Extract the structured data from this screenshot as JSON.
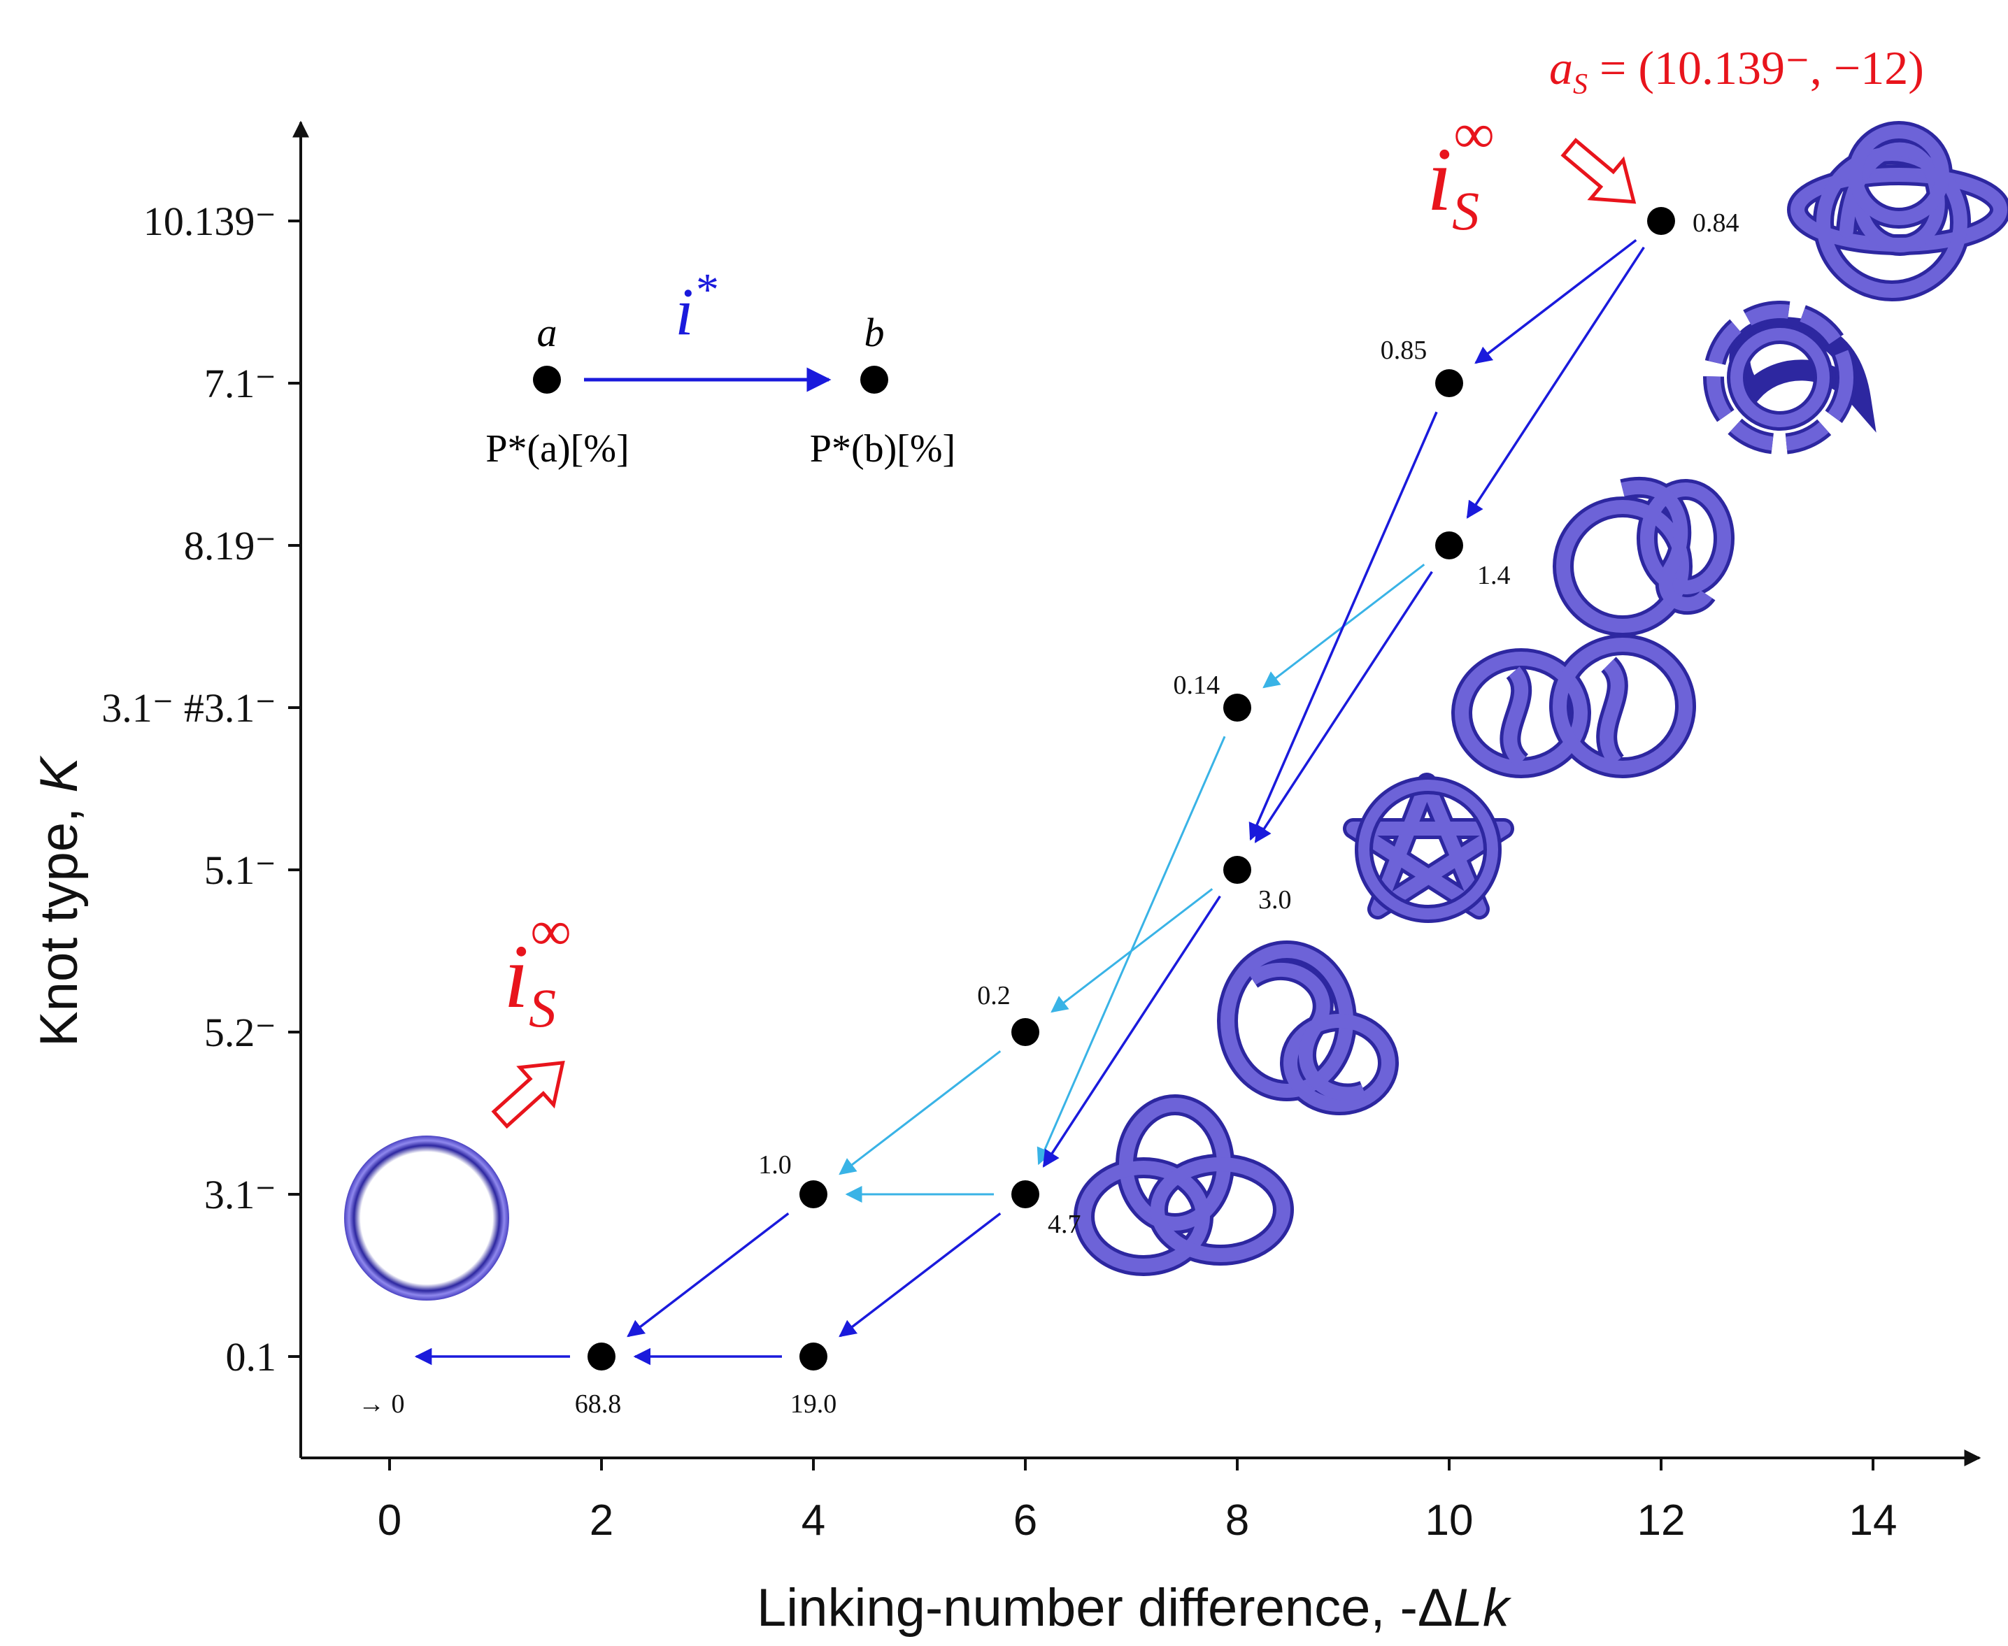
{
  "chart_data": {
    "type": "scatter",
    "xlabel_main": "Linking-number difference, -Δ",
    "xlabel_italic": "Lk",
    "ylabel_main": "Knot type, ",
    "ylabel_italic": "K",
    "x_ticks": [
      "0",
      "2",
      "4",
      "6",
      "8",
      "10",
      "12",
      "14"
    ],
    "xlim": [
      -0.9,
      14.9
    ],
    "y_categories": [
      "0.1",
      "3.1⁻",
      "5.2⁻",
      "5.1⁻",
      "3.1⁻ #3.1⁻",
      "8.19⁻",
      "7.1⁻",
      "10.139⁻"
    ],
    "points": [
      {
        "x": 2,
        "k": 0,
        "p": "68.8"
      },
      {
        "x": 4,
        "k": 0,
        "p": "19.0"
      },
      {
        "x": 4,
        "k": 1,
        "p": "1.0"
      },
      {
        "x": 6,
        "k": 1,
        "p": "4.7"
      },
      {
        "x": 6,
        "k": 2,
        "p": "0.2"
      },
      {
        "x": 8,
        "k": 3,
        "p": "3.0"
      },
      {
        "x": 8,
        "k": 4,
        "p": "0.14"
      },
      {
        "x": 10,
        "k": 5,
        "p": "1.4"
      },
      {
        "x": 10,
        "k": 6,
        "p": "0.85"
      },
      {
        "x": 12,
        "k": 7,
        "p": "0.84"
      }
    ],
    "unknot_label": "→ 0",
    "transitions_major": [
      [
        12,
        7,
        10,
        6
      ],
      [
        12,
        7,
        10,
        5
      ],
      [
        10,
        6,
        8,
        3
      ],
      [
        10,
        5,
        8,
        3
      ],
      [
        8,
        3,
        6,
        1
      ],
      [
        6,
        1,
        4,
        0
      ],
      [
        4,
        1,
        2,
        0
      ],
      [
        4,
        0,
        2,
        0
      ],
      [
        2,
        0,
        0.2,
        0
      ]
    ],
    "transitions_minor": [
      [
        10,
        5,
        8,
        4
      ],
      [
        8,
        4,
        6,
        1
      ],
      [
        8,
        3,
        6,
        2
      ],
      [
        6,
        2,
        4,
        1
      ],
      [
        6,
        1,
        4,
        1
      ]
    ],
    "legend": {
      "a": "a",
      "b": "b",
      "arrow_label": "i",
      "arrow_sup": "*",
      "pa": "P*(a)[%]",
      "pb": "P*(b)[%]"
    },
    "annotations": {
      "is_symbol": "i",
      "is_sub": "S",
      "is_sup": "∞",
      "as_label": "a",
      "as_sub": "S",
      "as_value": " = (10.139⁻, −12)"
    },
    "knot_images": [
      "trefoil-3-1",
      "knot-5-2",
      "knot-5-1",
      "granny-3-1-sum",
      "knot-8-19",
      "knot-7-1",
      "knot-10-139",
      "unknot-ring"
    ],
    "colors": {
      "major": "#1a1adc",
      "minor": "#39b3e6",
      "red": "#e8141c",
      "knot": "#6d63d8",
      "knot_dark": "#2d27a0"
    }
  }
}
